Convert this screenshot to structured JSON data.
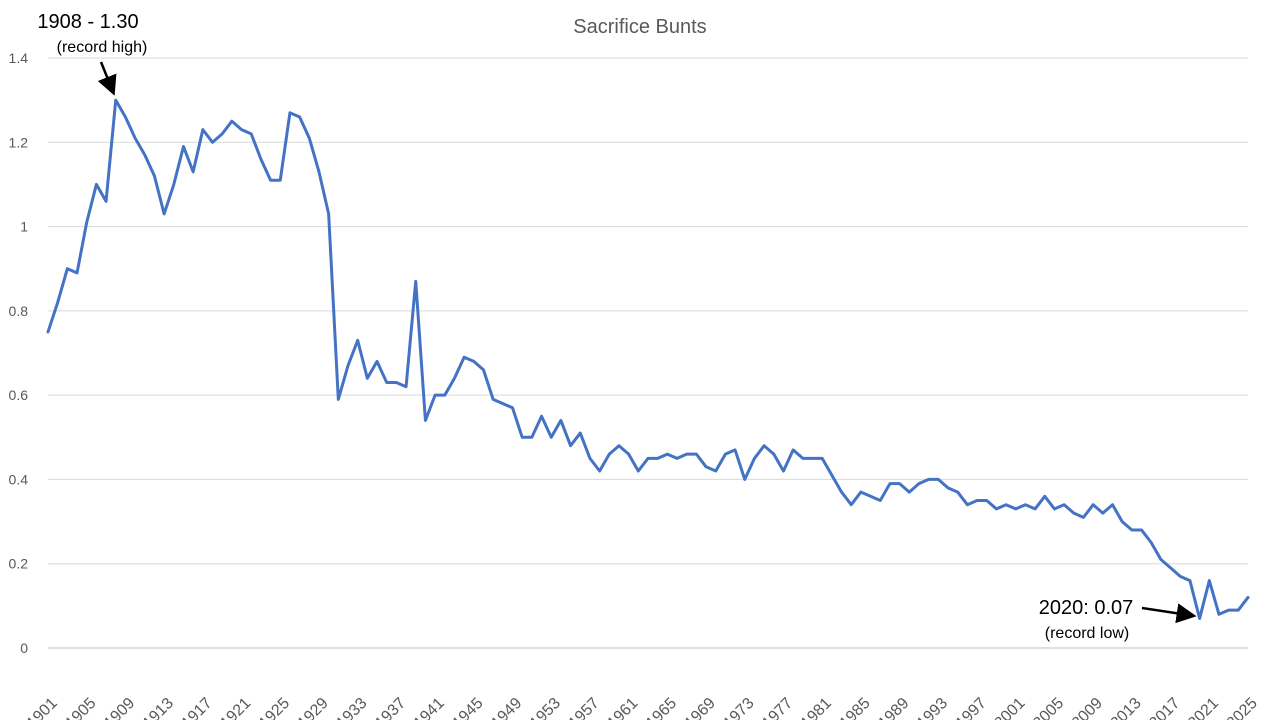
{
  "chart_data": {
    "type": "line",
    "title": "Sacrifice Bunts",
    "xlabel": "",
    "ylabel": "",
    "ylim": [
      0,
      1.4
    ],
    "yticks": [
      "0",
      "0.2",
      "0.4",
      "0.6",
      "0.8",
      "1",
      "1.2",
      "1.4"
    ],
    "xlim": [
      1901,
      2025
    ],
    "xticks": [
      "1901",
      "1905",
      "1909",
      "1913",
      "1917",
      "1921",
      "1925",
      "1929",
      "1933",
      "1937",
      "1941",
      "1945",
      "1949",
      "1953",
      "1957",
      "1961",
      "1965",
      "1969",
      "1973",
      "1977",
      "1981",
      "1985",
      "1989",
      "1993",
      "1997",
      "2001",
      "2005",
      "2009",
      "2013",
      "2017",
      "2021",
      "2025"
    ],
    "grid": true,
    "legend": "none",
    "series": [
      {
        "color": "#4472c4",
        "x": [
          1901,
          1902,
          1903,
          1904,
          1905,
          1906,
          1907,
          1908,
          1909,
          1910,
          1911,
          1912,
          1913,
          1914,
          1915,
          1916,
          1917,
          1918,
          1919,
          1920,
          1921,
          1922,
          1923,
          1924,
          1925,
          1926,
          1927,
          1928,
          1929,
          1930,
          1931,
          1932,
          1933,
          1934,
          1935,
          1936,
          1937,
          1938,
          1939,
          1940,
          1941,
          1942,
          1943,
          1944,
          1945,
          1946,
          1947,
          1948,
          1949,
          1950,
          1951,
          1952,
          1953,
          1954,
          1955,
          1956,
          1957,
          1958,
          1959,
          1960,
          1961,
          1962,
          1963,
          1964,
          1965,
          1966,
          1967,
          1968,
          1969,
          1970,
          1971,
          1972,
          1973,
          1974,
          1975,
          1976,
          1977,
          1978,
          1979,
          1980,
          1981,
          1982,
          1983,
          1984,
          1985,
          1986,
          1987,
          1988,
          1989,
          1990,
          1991,
          1992,
          1993,
          1994,
          1995,
          1996,
          1997,
          1998,
          1999,
          2000,
          2001,
          2002,
          2003,
          2004,
          2005,
          2006,
          2007,
          2008,
          2009,
          2010,
          2011,
          2012,
          2013,
          2014,
          2015,
          2016,
          2017,
          2018,
          2019,
          2020,
          2021,
          2022,
          2023,
          2024,
          2025
        ],
        "y": [
          0.75,
          0.82,
          0.9,
          0.89,
          1.01,
          1.1,
          1.06,
          1.3,
          1.26,
          1.21,
          1.17,
          1.12,
          1.03,
          1.1,
          1.19,
          1.13,
          1.23,
          1.2,
          1.22,
          1.25,
          1.23,
          1.22,
          1.16,
          1.11,
          1.11,
          1.27,
          1.26,
          1.21,
          1.13,
          1.03,
          0.59,
          0.67,
          0.73,
          0.64,
          0.68,
          0.63,
          0.63,
          0.62,
          0.87,
          0.54,
          0.6,
          0.6,
          0.64,
          0.69,
          0.68,
          0.66,
          0.59,
          0.58,
          0.57,
          0.5,
          0.5,
          0.55,
          0.5,
          0.54,
          0.48,
          0.51,
          0.45,
          0.42,
          0.46,
          0.48,
          0.46,
          0.42,
          0.45,
          0.45,
          0.46,
          0.45,
          0.46,
          0.46,
          0.43,
          0.42,
          0.46,
          0.47,
          0.4,
          0.45,
          0.48,
          0.46,
          0.42,
          0.47,
          0.45,
          0.45,
          0.45,
          0.41,
          0.37,
          0.34,
          0.37,
          0.36,
          0.35,
          0.39,
          0.39,
          0.37,
          0.39,
          0.4,
          0.4,
          0.38,
          0.37,
          0.34,
          0.35,
          0.35,
          0.33,
          0.34,
          0.33,
          0.34,
          0.33,
          0.36,
          0.33,
          0.34,
          0.32,
          0.31,
          0.34,
          0.32,
          0.34,
          0.3,
          0.28,
          0.28,
          0.25,
          0.21,
          0.19,
          0.17,
          0.16,
          0.07,
          0.16,
          0.08,
          0.09,
          0.09,
          0.12
        ]
      }
    ],
    "annotations": [
      {
        "id": "high",
        "x": 1908,
        "y": 1.3,
        "text": "1908 - 1.30",
        "subtext": "(record high)"
      },
      {
        "id": "low",
        "x": 2020,
        "y": 0.07,
        "text": "2020: 0.07",
        "subtext": "(record low)"
      }
    ]
  }
}
